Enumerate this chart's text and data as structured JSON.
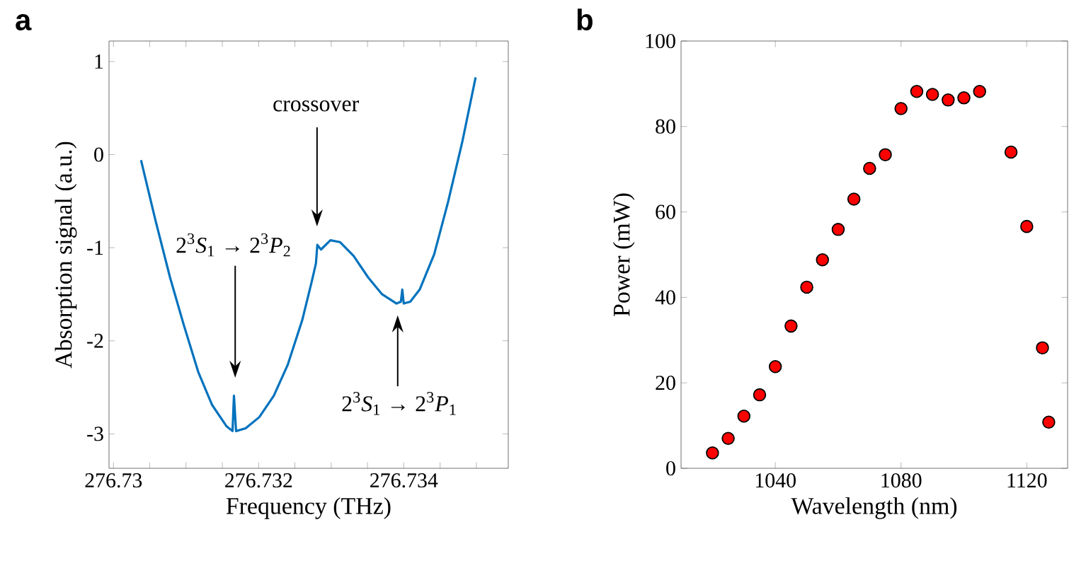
{
  "chart_data": [
    {
      "type": "line",
      "title": "a",
      "xlabel": "Frequency (THz)",
      "ylabel": "Absorption signal (a.u.)",
      "xlim": [
        276.72994,
        276.73544
      ],
      "ylim": [
        -3.37,
        1.22
      ],
      "xticks": [
        276.73,
        {
          "value": 276.7305,
          "label": null
        },
        {
          "value": 276.731,
          "label": null
        },
        {
          "value": 276.7315,
          "label": null
        },
        276.732,
        {
          "value": 276.7325,
          "label": null
        },
        {
          "value": 276.733,
          "label": null
        },
        {
          "value": 276.7335,
          "label": null
        },
        276.734,
        {
          "value": 276.7345,
          "label": null
        },
        {
          "value": 276.735,
          "label": null
        }
      ],
      "yticks": [
        -3,
        -2,
        -1,
        0,
        1
      ],
      "series": [
        {
          "color": "#0072bd",
          "x": [
            276.73038,
            276.73058,
            276.73078,
            276.73097,
            276.73117,
            276.73136,
            276.73156,
            276.73164,
            276.73166,
            276.73169,
            276.73182,
            276.73201,
            276.73221,
            276.7324,
            276.7326,
            276.73273,
            276.73279,
            276.73281,
            276.73286,
            276.73299,
            276.73312,
            276.73331,
            276.73351,
            276.7337,
            276.7339,
            276.73396,
            276.73398,
            276.734,
            276.73409,
            276.73422,
            276.73442,
            276.73461,
            276.73481,
            276.73499
          ],
          "values": [
            -0.06,
            -0.71,
            -1.32,
            -1.83,
            -2.34,
            -2.69,
            -2.92,
            -2.97,
            -2.59,
            -2.97,
            -2.94,
            -2.82,
            -2.59,
            -2.26,
            -1.78,
            -1.37,
            -1.17,
            -0.97,
            -1.02,
            -0.92,
            -0.94,
            -1.09,
            -1.32,
            -1.5,
            -1.6,
            -1.58,
            -1.45,
            -1.6,
            -1.58,
            -1.45,
            -1.07,
            -0.51,
            0.15,
            0.83
          ]
        }
      ],
      "annotations": [
        "crossover",
        "2$^{3}$*S*$_{1}$ → 2$^{3}$*P*$_{2}$",
        "2$^{3}$*S*$_{1}$ → 2$^{3}$*P*$_{1}$"
      ]
    },
    {
      "type": "scatter",
      "title": "b",
      "xlabel": "Wavelength (nm)",
      "ylabel": "Power (mW)",
      "xlim": [
        1010,
        1133
      ],
      "ylim": [
        0,
        100
      ],
      "xticks": [
        1040,
        1080,
        1120
      ],
      "yticks": [
        0,
        20,
        40,
        60,
        80,
        100
      ],
      "marker": "circle",
      "series": [
        {
          "color": "#ff0000",
          "x": [
            1020,
            1025,
            1030,
            1035,
            1040,
            1045,
            1050,
            1055,
            1060,
            1065,
            1070,
            1075,
            1080,
            1085,
            1090,
            1095,
            1100,
            1105,
            1115,
            1120,
            1125,
            1127
          ],
          "values": [
            3.6,
            7.0,
            12.2,
            17.2,
            23.8,
            33.3,
            42.4,
            48.8,
            55.9,
            63.0,
            70.2,
            73.4,
            84.2,
            88.2,
            87.5,
            86.2,
            86.7,
            88.2,
            74.0,
            56.6,
            28.2,
            10.8
          ]
        }
      ]
    }
  ]
}
